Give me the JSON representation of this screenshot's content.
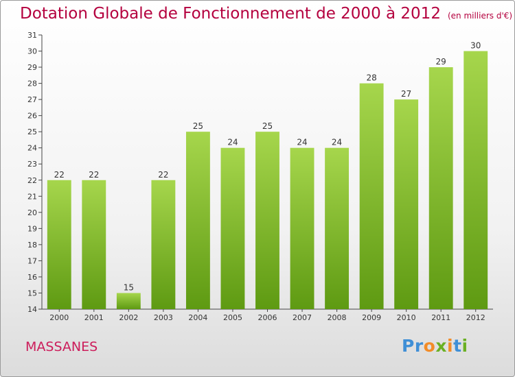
{
  "title": "Dotation Globale de Fonctionnement de 2000 à 2012",
  "subtitle": "(en milliers d'€)",
  "commune": "MASSANES",
  "logo": {
    "letters": [
      "P",
      "r",
      "o",
      "x",
      "i",
      "t",
      "i"
    ]
  },
  "colors": {
    "title": "#b4003e",
    "commune": "#cc1c5a",
    "bar_light": "#a6d64c",
    "bar_dark": "#5e9a12",
    "logo": [
      "#3f8fd6",
      "#3f8fd6",
      "#f28c28",
      "#6ab023",
      "#f28c28",
      "#3f8fd6",
      "#6ab023"
    ]
  },
  "chart_data": {
    "type": "bar",
    "categories": [
      "2000",
      "2001",
      "2002",
      "2003",
      "2004",
      "2005",
      "2006",
      "2007",
      "2008",
      "2009",
      "2010",
      "2011",
      "2012"
    ],
    "values": [
      22,
      22,
      15,
      22,
      25,
      24,
      25,
      24,
      24,
      28,
      27,
      29,
      30
    ],
    "title": "Dotation Globale de Fonctionnement de 2000 à 2012",
    "subtitle": "(en milliers d'€)",
    "xlabel": "",
    "ylabel": "",
    "ylim": [
      14,
      31
    ],
    "yticks": [
      14,
      15,
      16,
      17,
      18,
      19,
      20,
      21,
      22,
      23,
      24,
      25,
      26,
      27,
      28,
      29,
      30,
      31
    ],
    "grid": false,
    "legend": "none"
  }
}
